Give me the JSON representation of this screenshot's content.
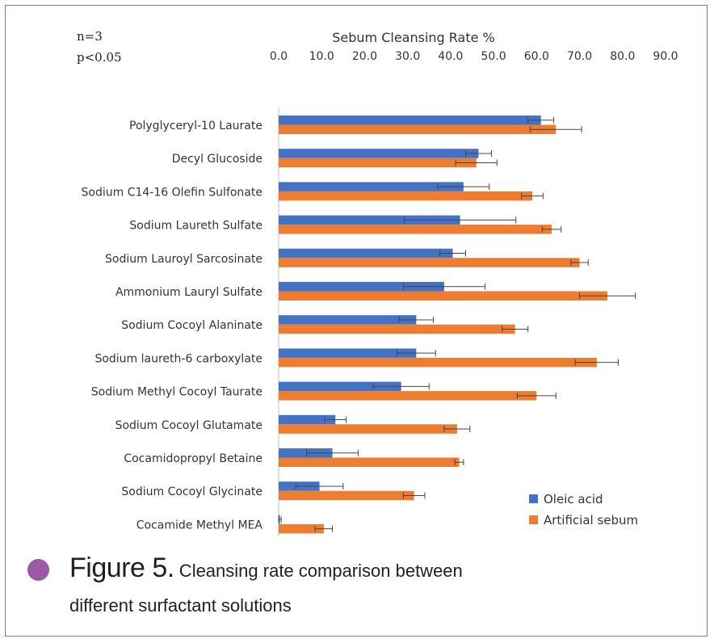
{
  "annotations": {
    "n": "n=3",
    "p": "p<0.05"
  },
  "figure_caption": {
    "label": "Figure 5.",
    "text_line1": " Cleansing rate comparison between",
    "text_line2": "different surfactant solutions"
  },
  "colors": {
    "oleic": "#4472c4",
    "sebum": "#ed7d31",
    "frame": "#9b6a9a",
    "dot": "#9b59a6"
  },
  "chart_data": {
    "type": "bar",
    "orientation": "horizontal",
    "title": "Sebum Cleansing Rate %",
    "xlim": [
      0,
      90
    ],
    "xticks": [
      "0.0",
      "10.0",
      "20.0",
      "30.0",
      "40.0",
      "50.0",
      "60.0",
      "70.0",
      "80.0",
      "90.0"
    ],
    "x_axis_position": "top",
    "grid": false,
    "legend_position": "bottom-right",
    "categories": [
      "Polyglyceryl-10 Laurate",
      "Decyl Glucoside",
      "Sodium C14-16 Olefin Sulfonate",
      "Sodium Laureth Sulfate",
      "Sodium Lauroyl Sarcosinate",
      "Ammonium Lauryl Sulfate",
      "Sodium Cocoyl Alaninate",
      "Sodium laureth-6 carboxylate",
      "Sodium Methyl Cocoyl Taurate",
      "Sodium Cocoyl Glutamate",
      "Cocamidopropyl Betaine",
      "Sodium Cocoyl Glycinate",
      "Cocamide Methyl MEA"
    ],
    "series": [
      {
        "name": "Oleic acid",
        "color": "#4472c4",
        "values": [
          61.0,
          46.5,
          43.0,
          42.2,
          40.5,
          38.5,
          32.0,
          32.0,
          28.5,
          13.2,
          12.5,
          9.5,
          0.3
        ],
        "errors": [
          3.0,
          3.0,
          6.0,
          13.0,
          3.0,
          9.5,
          4.0,
          4.5,
          6.5,
          2.5,
          6.0,
          5.5,
          0.3
        ]
      },
      {
        "name": "Artificial sebum",
        "color": "#ed7d31",
        "values": [
          64.5,
          46.0,
          59.0,
          63.5,
          70.0,
          76.5,
          55.0,
          74.0,
          60.0,
          41.5,
          42.0,
          31.5,
          10.5
        ],
        "errors": [
          6.0,
          4.8,
          2.5,
          2.2,
          2.0,
          6.5,
          3.0,
          5.0,
          4.5,
          3.0,
          1.0,
          2.5,
          2.0
        ]
      }
    ]
  }
}
